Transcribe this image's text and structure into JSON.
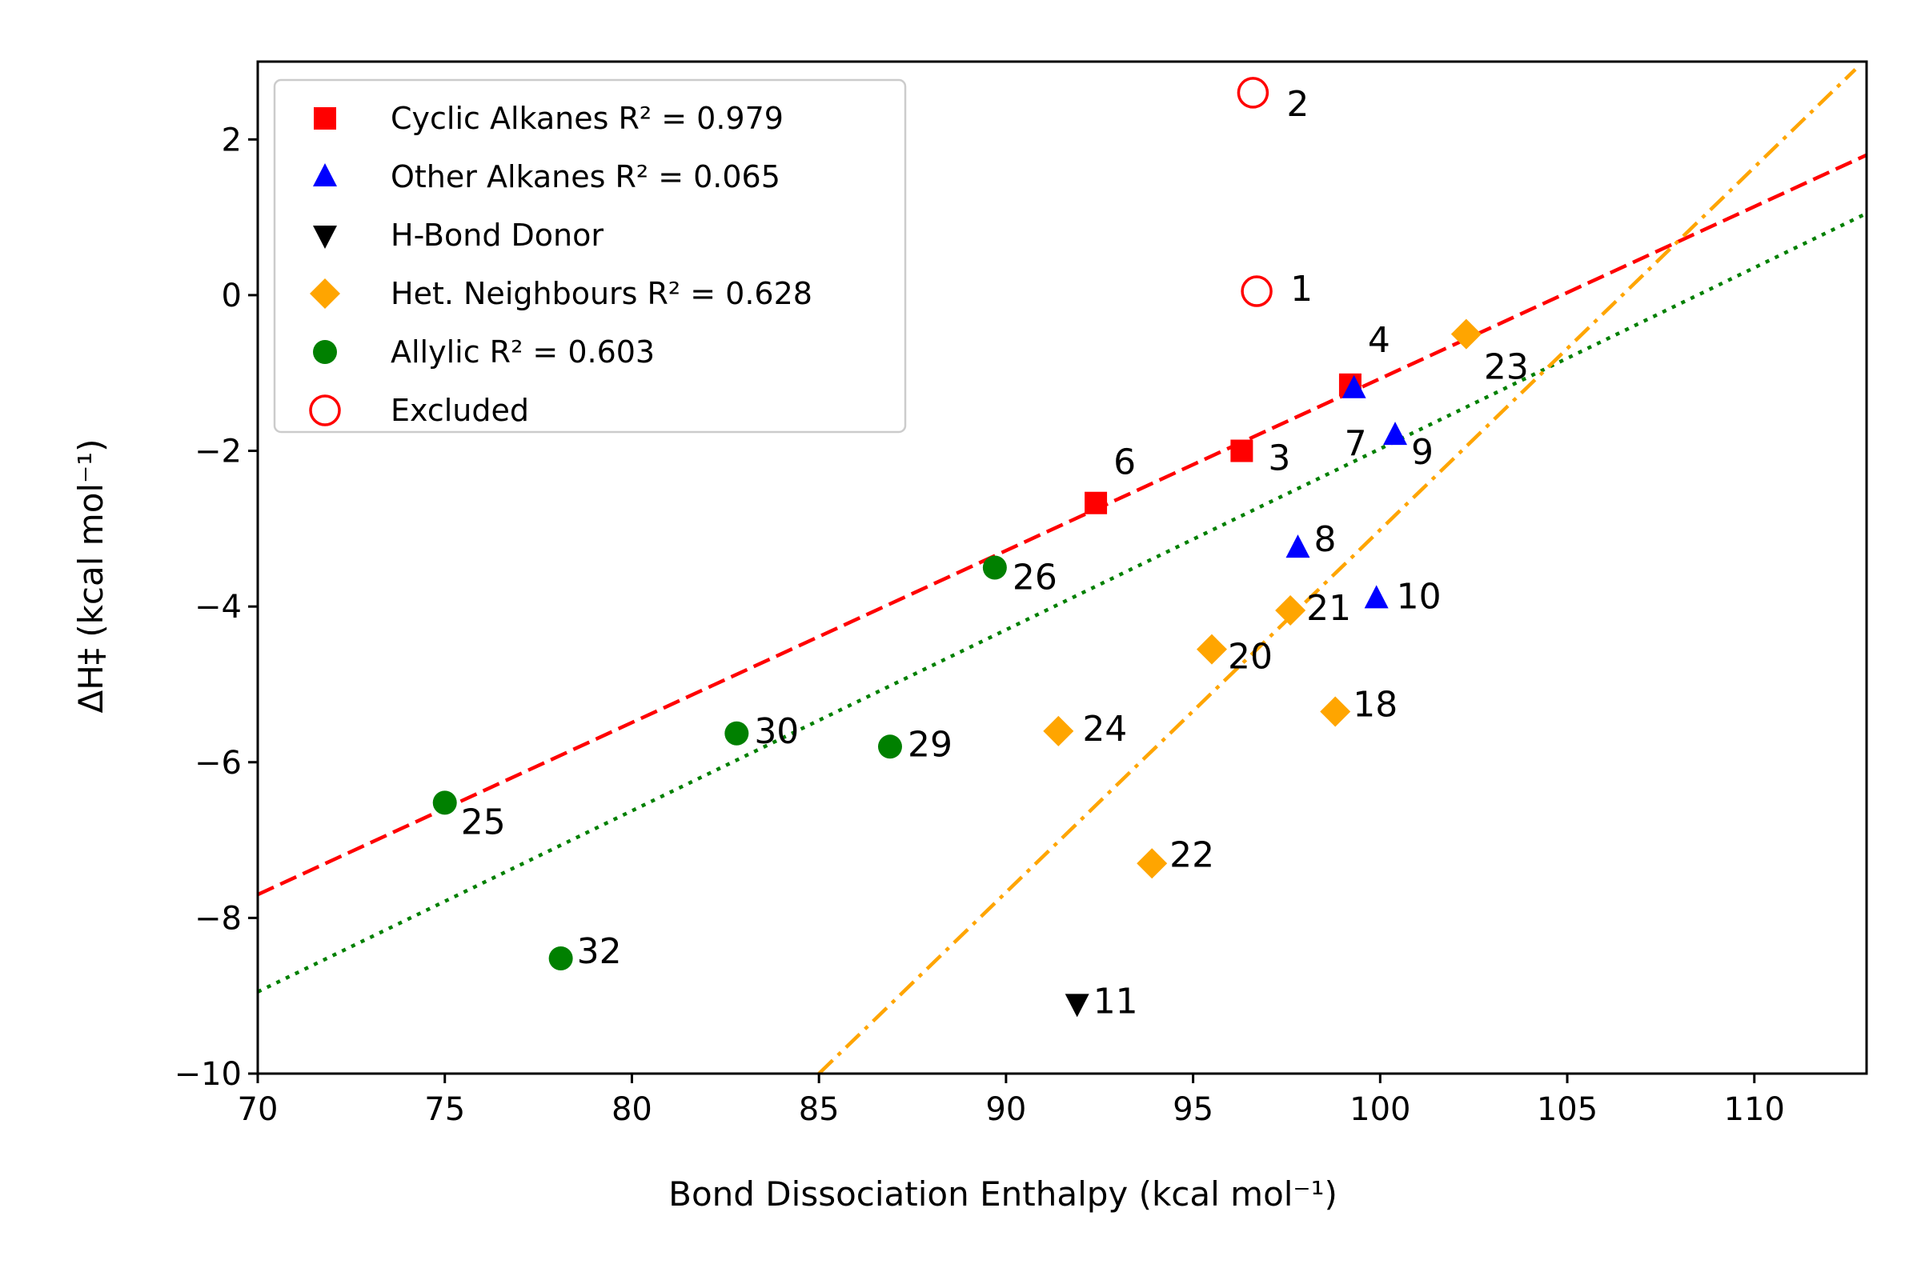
{
  "chart_data": {
    "type": "scatter",
    "xlabel": "Bond Dissociation Enthalpy (kcal mol⁻¹)",
    "ylabel": "ΔH‡ (kcal mol⁻¹)",
    "xlim": [
      70,
      113
    ],
    "ylim": [
      -10,
      3
    ],
    "xticks": [
      70,
      75,
      80,
      85,
      90,
      95,
      100,
      105,
      110
    ],
    "yticks": [
      -10,
      -8,
      -6,
      -4,
      -2,
      0,
      2
    ],
    "grid": false,
    "legend_position": "top-left",
    "series": [
      {
        "name": "Cyclic Alkanes R² = 0.979",
        "marker": "square",
        "color": "#ff0000",
        "points": [
          {
            "label": "6",
            "x": 92.4,
            "y": -2.67
          },
          {
            "label": "3",
            "x": 96.3,
            "y": -2.0
          },
          {
            "label": "4",
            "x": 99.2,
            "y": -1.15
          }
        ]
      },
      {
        "name": "Other Alkanes R² = 0.065",
        "marker": "triangle-up",
        "color": "#0000ff",
        "points": [
          {
            "label": "7",
            "x": 99.3,
            "y": -1.2
          },
          {
            "label": "9",
            "x": 100.4,
            "y": -1.8
          },
          {
            "label": "8",
            "x": 97.8,
            "y": -3.25
          },
          {
            "label": "10",
            "x": 99.9,
            "y": -3.9
          }
        ]
      },
      {
        "name": "H-Bond Donor",
        "marker": "triangle-down",
        "color": "#000000",
        "points": [
          {
            "label": "11",
            "x": 91.9,
            "y": -9.1
          }
        ]
      },
      {
        "name": "Het. Neighbours R² = 0.628",
        "marker": "diamond",
        "color": "#ffa500",
        "points": [
          {
            "label": "23",
            "x": 102.3,
            "y": -0.5
          },
          {
            "label": "21",
            "x": 97.6,
            "y": -4.05
          },
          {
            "label": "20",
            "x": 95.5,
            "y": -4.55
          },
          {
            "label": "18",
            "x": 98.8,
            "y": -5.35
          },
          {
            "label": "24",
            "x": 91.4,
            "y": -5.6
          },
          {
            "label": "22",
            "x": 93.9,
            "y": -7.3
          }
        ]
      },
      {
        "name": "Allylic R² = 0.603",
        "marker": "circle",
        "color": "#008000",
        "points": [
          {
            "label": "26",
            "x": 89.7,
            "y": -3.5
          },
          {
            "label": "30",
            "x": 82.8,
            "y": -5.63
          },
          {
            "label": "29",
            "x": 86.9,
            "y": -5.8
          },
          {
            "label": "25",
            "x": 75.0,
            "y": -6.52
          },
          {
            "label": "32",
            "x": 78.1,
            "y": -8.52
          }
        ]
      },
      {
        "name": "Excluded",
        "marker": "open-circle",
        "color": "#ff0000",
        "points": [
          {
            "label": "2",
            "x": 96.6,
            "y": 2.6
          },
          {
            "label": "1",
            "x": 96.7,
            "y": 0.05
          }
        ]
      }
    ],
    "fit_lines": [
      {
        "series": "Cyclic Alkanes",
        "style": "dashed",
        "color": "#ff0000",
        "x": [
          70,
          113
        ],
        "y": [
          -7.7,
          1.8
        ]
      },
      {
        "series": "Allylic",
        "style": "dotted",
        "color": "#008000",
        "x": [
          70,
          113
        ],
        "y": [
          -8.95,
          1.05
        ]
      },
      {
        "series": "Het. Neighbours",
        "style": "dash-dot",
        "color": "#ffa500",
        "x": [
          85,
          112.7
        ],
        "y": [
          -10,
          2.9
        ]
      }
    ]
  }
}
